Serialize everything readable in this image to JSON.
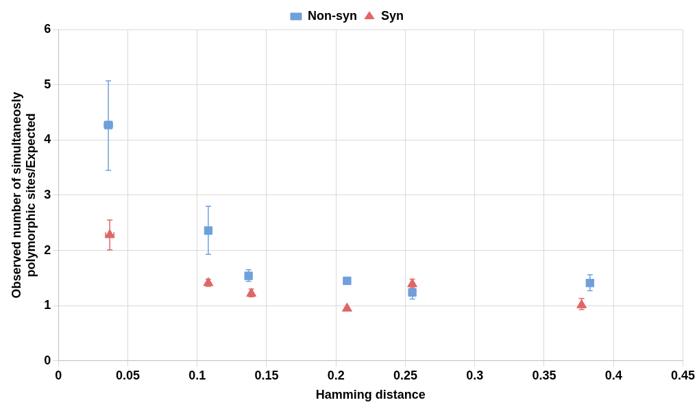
{
  "chart_data": {
    "type": "scatter",
    "xlabel": "Hamming distance",
    "ylabel": "Observed number of simultaneosly polymorphic sites/Expected",
    "xlim": [
      0,
      0.45
    ],
    "xticks": [
      0,
      0.05,
      0.1,
      0.15,
      0.2,
      0.25,
      0.3,
      0.35,
      0.4,
      0.45
    ],
    "ylim": [
      0,
      6
    ],
    "yticks": [
      0,
      1,
      2,
      3,
      4,
      5,
      6
    ],
    "grid": true,
    "legend": "top",
    "series": [
      {
        "name": "Non-syn",
        "color": "#6fa0dc",
        "marker": "square",
        "x": [
          0.036,
          0.108,
          0.137,
          0.208,
          0.255,
          0.383
        ],
        "values": [
          4.27,
          2.36,
          1.54,
          1.45,
          1.24,
          1.41
        ],
        "errors": [
          [
            3.45,
            5.07
          ],
          [
            1.93,
            2.8
          ],
          [
            1.44,
            1.65
          ],
          null,
          [
            1.12,
            1.35
          ],
          [
            1.27,
            1.56
          ]
        ],
        "xerrors": [
          [
            0.033,
            0.039
          ],
          null,
          null,
          null,
          null,
          null
        ]
      },
      {
        "name": "Syn",
        "color": "#e06666",
        "marker": "triangle",
        "x": [
          0.037,
          0.108,
          0.139,
          0.208,
          0.255,
          0.377
        ],
        "values": [
          2.28,
          1.41,
          1.22,
          0.95,
          1.39,
          1.01
        ],
        "errors": [
          [
            2.01,
            2.55
          ],
          [
            1.35,
            1.48
          ],
          [
            1.16,
            1.3
          ],
          null,
          [
            1.32,
            1.48
          ],
          [
            0.93,
            1.13
          ]
        ],
        "xerrors": [
          [
            0.034,
            0.04
          ],
          null,
          null,
          null,
          null,
          null
        ]
      }
    ]
  }
}
